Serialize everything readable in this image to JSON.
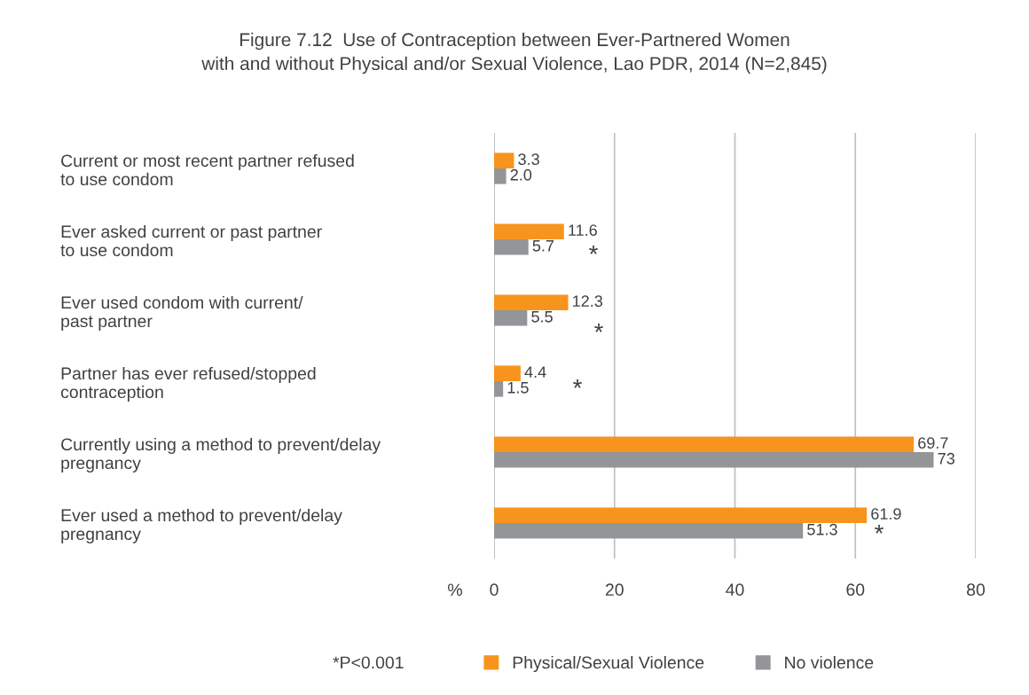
{
  "chart_data": {
    "type": "bar",
    "orientation": "horizontal",
    "title": "Figure 7.12  Use of Contraception between Ever-Partnered Women\nwith and without Physical and/or Sexual Violence, Lao PDR, 2014 (N=2,845)",
    "xlabel": "%",
    "categories": [
      "Current or most recent partner refused\nto use condom",
      "Ever asked current or past partner\nto use condom",
      "Ever used condom with current/\npast partner",
      "Partner has ever refused/stopped\ncontraception",
      "Currently using a method to prevent/delay\npregnancy",
      "Ever used a method to prevent/delay\npregnancy"
    ],
    "series": [
      {
        "name": "Physical/Sexual Violence",
        "color": "#f7941d",
        "values": [
          3.3,
          11.6,
          12.3,
          4.4,
          69.7,
          61.9
        ],
        "value_labels": [
          "3.3",
          "11.6",
          "12.3",
          "4.4",
          "69.7",
          "61.9"
        ]
      },
      {
        "name": "No violence",
        "color": "#939598",
        "values": [
          2.0,
          5.7,
          5.5,
          1.5,
          73,
          51.3
        ],
        "value_labels": [
          "2.0",
          "5.7",
          "5.5",
          "1.5",
          "73",
          "51.3"
        ]
      }
    ],
    "xlim": [
      0,
      80
    ],
    "xticks": [
      0,
      20,
      40,
      60,
      80
    ],
    "grid": "x",
    "legend": "bottom",
    "annotations": [
      "*",
      "*",
      "*",
      "*",
      "*P<0.001"
    ]
  }
}
